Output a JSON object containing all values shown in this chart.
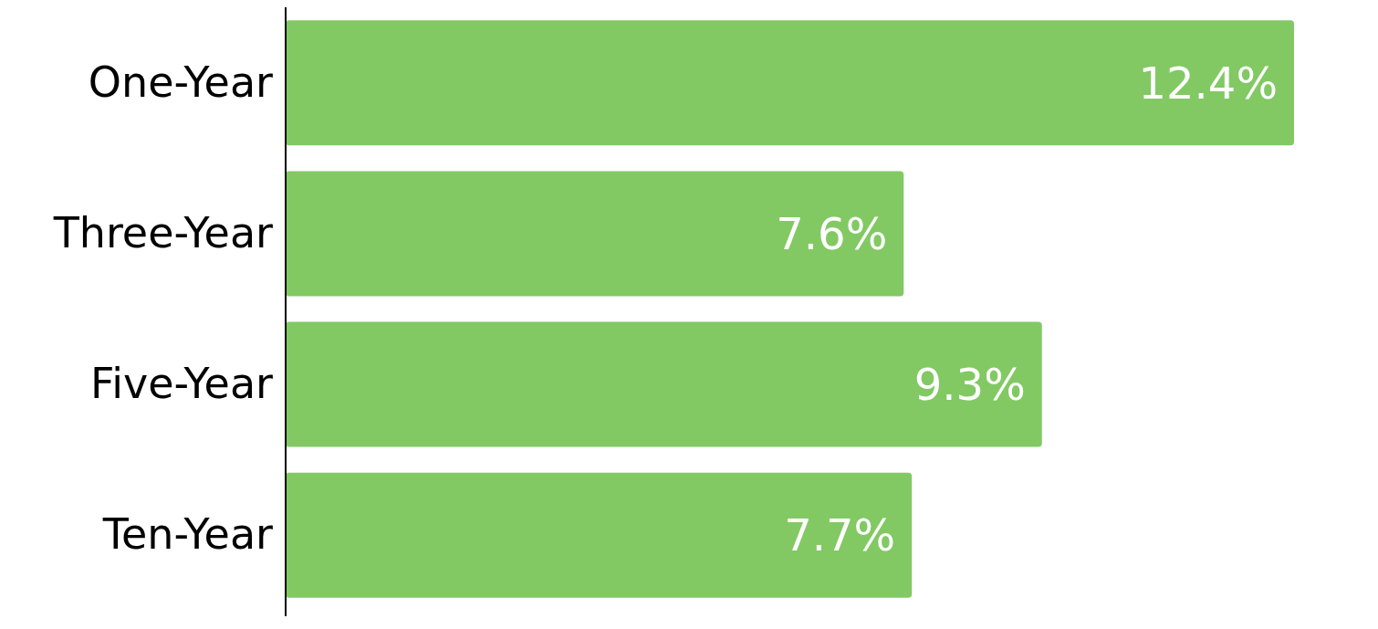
{
  "chart_data": {
    "type": "bar",
    "orientation": "horizontal",
    "categories": [
      "One-Year",
      "Three-Year",
      "Five-Year",
      "Ten-Year"
    ],
    "values": [
      12.4,
      7.6,
      9.3,
      7.7
    ],
    "value_labels": [
      "12.4%",
      "7.6%",
      "9.3%",
      "7.7%"
    ],
    "color": "#82c964",
    "tick_labels": "y"
  }
}
